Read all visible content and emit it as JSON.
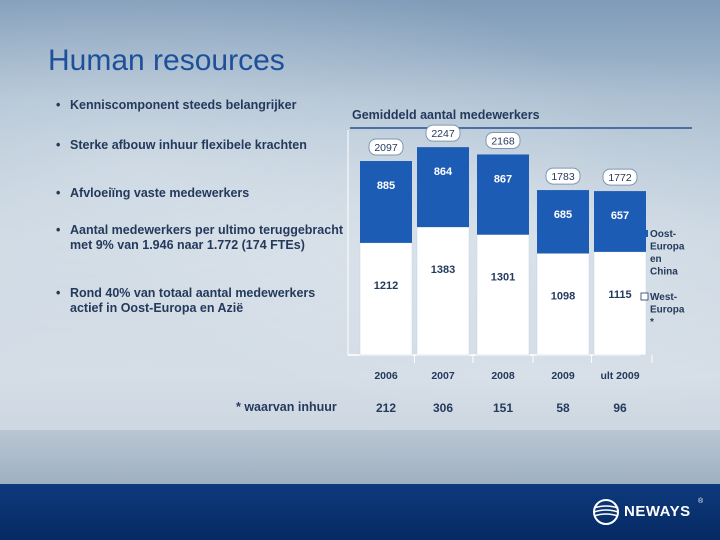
{
  "title": "Human resources",
  "bullets": [
    "Kenniscomponent steeds belangrijker",
    "Sterke afbouw inhuur flexibele krachten",
    "Afvloeiïng vaste medewerkers",
    "Aantal medewerkers per ultimo teruggebracht met 9% van 1.946 naar 1.772 (174 FTEs)",
    "Rond 40% van totaal aantal medewerkers actief in Oost-Europa en Azië"
  ],
  "footnote": "*  waarvan inhuur",
  "logo_text": "NEWAYS",
  "logo_mark": "®",
  "colors": {
    "title": "#1d4f9a",
    "bar_dark": "#1d5cb5",
    "bar_light": "#ffffff",
    "text": "#243a5c",
    "footer": "#0a3475"
  },
  "chart_data": {
    "type": "bar",
    "stacked": true,
    "title": "Gemiddeld aantal medewerkers",
    "categories": [
      "2006",
      "2007",
      "2008",
      "2009",
      "ult 2009"
    ],
    "series": [
      {
        "name": "West-Europa *",
        "values": [
          1212,
          1383,
          1301,
          1098,
          1115
        ]
      },
      {
        "name": "Oost-Europa en China",
        "values": [
          885,
          864,
          867,
          685,
          657
        ]
      }
    ],
    "totals": [
      2097,
      2247,
      2168,
      1783,
      1772
    ],
    "total_labels": [
      "2097",
      "2247",
      "2168",
      "1783",
      "1772"
    ],
    "segment_labels": {
      "West-Europa *": [
        "1212",
        "1383",
        "1301",
        "1098",
        "1115"
      ],
      "Oost-Europa en China": [
        "885",
        "864",
        "867",
        "685",
        "657"
      ]
    },
    "inhuur_values": [
      212,
      306,
      151,
      58,
      96
    ],
    "inhuur_labels": [
      "212",
      "306",
      "151",
      "58",
      "96"
    ],
    "legend_position": "right",
    "ylim": [
      0,
      2300
    ],
    "grid": false
  }
}
